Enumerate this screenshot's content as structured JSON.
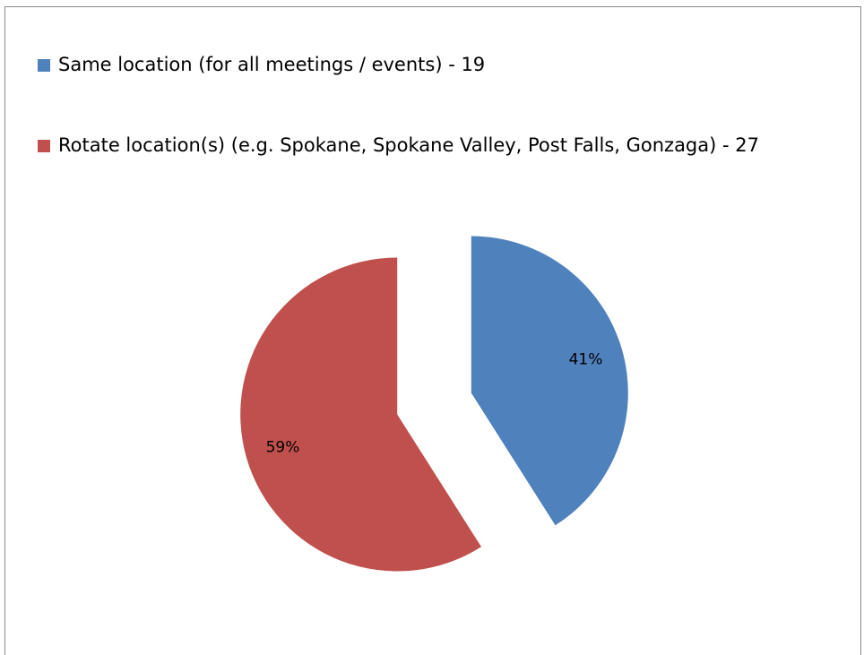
{
  "chart_data": {
    "type": "pie",
    "categories": [
      "Same location (for all meetings / events) - 19",
      "Rotate location(s) (e.g. Spokane, Spokane Valley, Post Falls, Gonzaga) - 27"
    ],
    "values": [
      41,
      59
    ],
    "value_labels": [
      "41%",
      "59%"
    ],
    "colors": [
      "#4f81bd",
      "#c0504d"
    ],
    "legend": "top"
  }
}
